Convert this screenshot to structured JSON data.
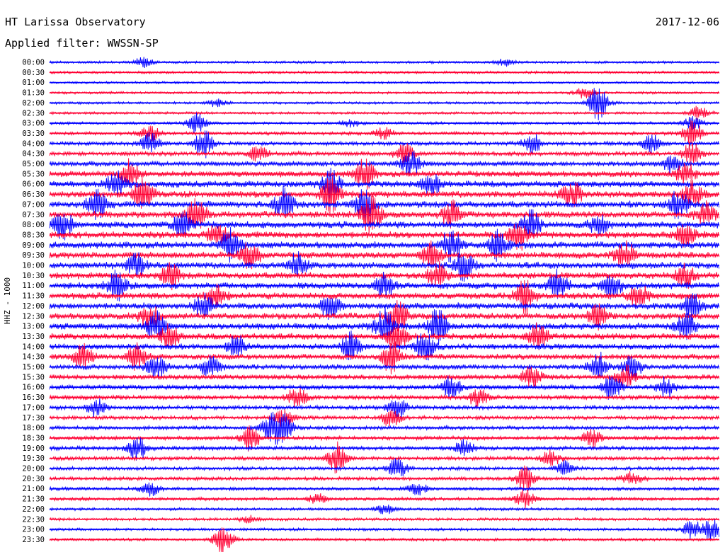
{
  "header": {
    "observatory": "HT Larissa Observatory",
    "date": "2017-12-06",
    "filter_text": "Applied filter: WWSSN-SP"
  },
  "chart_data": {
    "type": "line",
    "title": "HT Larissa Observatory",
    "subtitle": "Applied filter: WWSSN-SP",
    "ylabel": "HHZ - 1000",
    "xlabel": "",
    "grid": false,
    "legend": "none",
    "colors": [
      "#0000ff",
      "#ff0033"
    ],
    "rows": [
      {
        "time": "00:00",
        "activity": 0.2,
        "events": [
          [
            0.14,
            0.4
          ],
          [
            0.68,
            0.3
          ]
        ]
      },
      {
        "time": "00:30",
        "activity": 0.2,
        "events": []
      },
      {
        "time": "01:00",
        "activity": 0.15,
        "events": []
      },
      {
        "time": "01:30",
        "activity": 0.2,
        "events": [
          [
            0.8,
            0.5
          ]
        ]
      },
      {
        "time": "02:00",
        "activity": 0.2,
        "events": [
          [
            0.25,
            0.3
          ],
          [
            0.82,
            1.6
          ]
        ]
      },
      {
        "time": "02:30",
        "activity": 0.2,
        "events": [
          [
            0.97,
            0.6
          ]
        ]
      },
      {
        "time": "03:00",
        "activity": 0.25,
        "events": [
          [
            0.22,
            0.9
          ],
          [
            0.45,
            0.3
          ],
          [
            0.96,
            0.6
          ]
        ]
      },
      {
        "time": "03:30",
        "activity": 0.35,
        "events": [
          [
            0.15,
            0.7
          ],
          [
            0.5,
            0.5
          ],
          [
            0.96,
            1.1
          ]
        ]
      },
      {
        "time": "04:00",
        "activity": 0.45,
        "events": [
          [
            0.15,
            1.0
          ],
          [
            0.23,
            1.2
          ],
          [
            0.72,
            0.9
          ],
          [
            0.9,
            0.8
          ]
        ]
      },
      {
        "time": "04:30",
        "activity": 0.55,
        "events": [
          [
            0.31,
            0.8
          ],
          [
            0.53,
            0.9
          ],
          [
            0.96,
            1.0
          ]
        ]
      },
      {
        "time": "05:00",
        "activity": 0.7,
        "events": [
          [
            0.54,
            1.1
          ],
          [
            0.93,
            0.9
          ]
        ]
      },
      {
        "time": "05:30",
        "activity": 0.85,
        "events": [
          [
            0.12,
            1.2
          ],
          [
            0.47,
            1.4
          ],
          [
            0.95,
            1.0
          ]
        ]
      },
      {
        "time": "06:00",
        "activity": 0.95,
        "events": [
          [
            0.1,
            1.1
          ],
          [
            0.42,
            1.3
          ],
          [
            0.57,
            1.0
          ]
        ]
      },
      {
        "time": "06:30",
        "activity": 1.0,
        "events": [
          [
            0.14,
            1.4
          ],
          [
            0.42,
            1.6
          ],
          [
            0.78,
            1.2
          ],
          [
            0.96,
            1.1
          ]
        ]
      },
      {
        "time": "07:00",
        "activity": 1.0,
        "events": [
          [
            0.07,
            1.3
          ],
          [
            0.35,
            1.4
          ],
          [
            0.47,
            1.5
          ],
          [
            0.94,
            1.2
          ]
        ]
      },
      {
        "time": "07:30",
        "activity": 1.0,
        "events": [
          [
            0.22,
            1.4
          ],
          [
            0.48,
            1.6
          ],
          [
            0.6,
            1.2
          ],
          [
            0.98,
            1.0
          ]
        ]
      },
      {
        "time": "08:00",
        "activity": 1.0,
        "events": [
          [
            0.02,
            1.2
          ],
          [
            0.2,
            1.3
          ],
          [
            0.72,
            1.2
          ],
          [
            0.82,
            1.0
          ]
        ]
      },
      {
        "time": "08:30",
        "activity": 1.0,
        "events": [
          [
            0.25,
            1.2
          ],
          [
            0.7,
            1.3
          ],
          [
            0.95,
            1.1
          ]
        ]
      },
      {
        "time": "09:00",
        "activity": 1.0,
        "events": [
          [
            0.27,
            1.4
          ],
          [
            0.6,
            1.5
          ],
          [
            0.67,
            1.4
          ]
        ]
      },
      {
        "time": "09:30",
        "activity": 1.0,
        "events": [
          [
            0.3,
            1.2
          ],
          [
            0.57,
            1.2
          ],
          [
            0.86,
            1.3
          ]
        ]
      },
      {
        "time": "10:00",
        "activity": 1.0,
        "events": [
          [
            0.13,
            1.0
          ],
          [
            0.37,
            1.0
          ],
          [
            0.62,
            1.3
          ]
        ]
      },
      {
        "time": "10:30",
        "activity": 0.95,
        "events": [
          [
            0.18,
            1.1
          ],
          [
            0.58,
            1.1
          ],
          [
            0.95,
            1.0
          ]
        ]
      },
      {
        "time": "11:00",
        "activity": 0.95,
        "events": [
          [
            0.1,
            1.2
          ],
          [
            0.5,
            1.2
          ],
          [
            0.76,
            1.3
          ],
          [
            0.84,
            1.3
          ]
        ]
      },
      {
        "time": "11:30",
        "activity": 0.95,
        "events": [
          [
            0.25,
            1.1
          ],
          [
            0.71,
            1.5
          ],
          [
            0.88,
            1.2
          ]
        ]
      },
      {
        "time": "12:00",
        "activity": 0.95,
        "events": [
          [
            0.23,
            1.1
          ],
          [
            0.42,
            1.3
          ],
          [
            0.96,
            1.0
          ]
        ]
      },
      {
        "time": "12:30",
        "activity": 0.95,
        "events": [
          [
            0.15,
            1.2
          ],
          [
            0.52,
            1.6
          ],
          [
            0.82,
            1.1
          ]
        ]
      },
      {
        "time": "13:00",
        "activity": 1.0,
        "events": [
          [
            0.16,
            1.3
          ],
          [
            0.5,
            1.7
          ],
          [
            0.58,
            1.5
          ],
          [
            0.95,
            1.2
          ]
        ]
      },
      {
        "time": "13:30",
        "activity": 0.9,
        "events": [
          [
            0.18,
            1.1
          ],
          [
            0.52,
            1.3
          ],
          [
            0.73,
            1.2
          ]
        ]
      },
      {
        "time": "14:00",
        "activity": 0.8,
        "events": [
          [
            0.28,
            1.1
          ],
          [
            0.45,
            1.2
          ],
          [
            0.56,
            1.4
          ]
        ]
      },
      {
        "time": "14:30",
        "activity": 0.75,
        "events": [
          [
            0.05,
            1.1
          ],
          [
            0.13,
            1.3
          ],
          [
            0.51,
            1.4
          ]
        ]
      },
      {
        "time": "15:00",
        "activity": 0.7,
        "events": [
          [
            0.16,
            1.1
          ],
          [
            0.24,
            1.0
          ],
          [
            0.82,
            1.3
          ],
          [
            0.87,
            1.2
          ]
        ]
      },
      {
        "time": "15:30",
        "activity": 0.65,
        "events": [
          [
            0.72,
            1.0
          ],
          [
            0.86,
            1.1
          ]
        ]
      },
      {
        "time": "16:00",
        "activity": 0.6,
        "events": [
          [
            0.6,
            1.1
          ],
          [
            0.84,
            1.2
          ],
          [
            0.92,
            0.9
          ]
        ]
      },
      {
        "time": "16:30",
        "activity": 0.55,
        "events": [
          [
            0.37,
            0.9
          ],
          [
            0.64,
            0.8
          ]
        ]
      },
      {
        "time": "17:00",
        "activity": 0.5,
        "events": [
          [
            0.07,
            0.8
          ],
          [
            0.52,
            1.0
          ]
        ]
      },
      {
        "time": "17:30",
        "activity": 0.45,
        "events": [
          [
            0.35,
            0.7
          ],
          [
            0.51,
            0.8
          ]
        ]
      },
      {
        "time": "18:00",
        "activity": 0.45,
        "events": [
          [
            0.33,
            1.1
          ],
          [
            0.35,
            1.3
          ]
        ]
      },
      {
        "time": "18:30",
        "activity": 0.45,
        "events": [
          [
            0.3,
            1.2
          ],
          [
            0.81,
            0.8
          ]
        ]
      },
      {
        "time": "19:00",
        "activity": 0.45,
        "events": [
          [
            0.13,
            1.2
          ],
          [
            0.62,
            0.7
          ]
        ]
      },
      {
        "time": "19:30",
        "activity": 0.45,
        "events": [
          [
            0.43,
            1.4
          ],
          [
            0.75,
            0.7
          ]
        ]
      },
      {
        "time": "20:00",
        "activity": 0.4,
        "events": [
          [
            0.52,
            0.9
          ],
          [
            0.77,
            0.6
          ]
        ]
      },
      {
        "time": "20:30",
        "activity": 0.4,
        "events": [
          [
            0.71,
            1.1
          ],
          [
            0.87,
            0.6
          ]
        ]
      },
      {
        "time": "21:00",
        "activity": 0.35,
        "events": [
          [
            0.15,
            0.6
          ],
          [
            0.55,
            0.5
          ]
        ]
      },
      {
        "time": "21:30",
        "activity": 0.35,
        "events": [
          [
            0.71,
            0.8
          ],
          [
            0.4,
            0.4
          ]
        ]
      },
      {
        "time": "22:00",
        "activity": 0.25,
        "events": [
          [
            0.5,
            0.4
          ]
        ]
      },
      {
        "time": "22:30",
        "activity": 0.25,
        "events": [
          [
            0.3,
            0.3
          ]
        ]
      },
      {
        "time": "23:00",
        "activity": 0.25,
        "events": [
          [
            0.96,
            0.8
          ],
          [
            0.99,
            1.0
          ]
        ]
      },
      {
        "time": "23:30",
        "activity": 0.25,
        "events": [
          [
            0.26,
            1.3
          ]
        ]
      }
    ]
  }
}
